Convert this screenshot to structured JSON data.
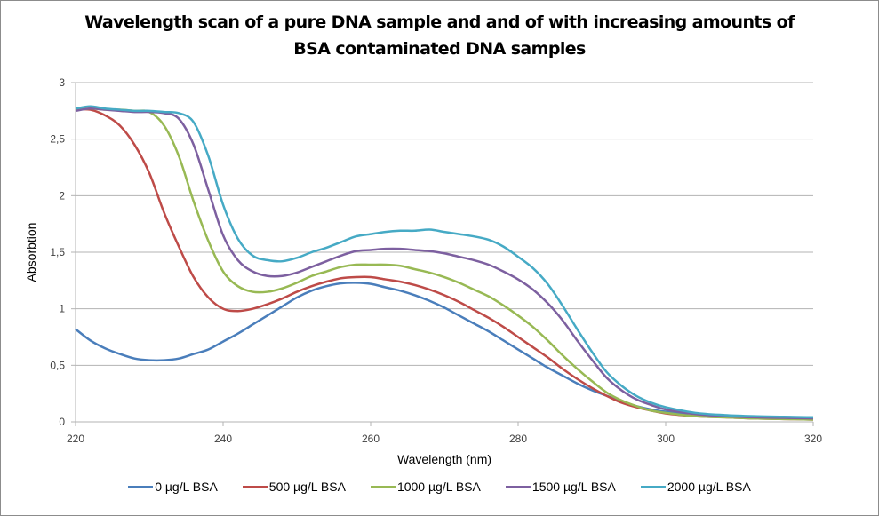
{
  "chart_data": {
    "type": "line",
    "title_lines": [
      "Wavelength scan of a pure DNA sample and and of with increasing amounts of",
      "BSA contaminated DNA samples"
    ],
    "xlabel": "Wavelength (nm)",
    "ylabel": "Absorbtion",
    "xlim": [
      220,
      320
    ],
    "ylim": [
      0,
      3
    ],
    "x_ticks": [
      220,
      240,
      260,
      280,
      300,
      320
    ],
    "x_tick_labels": [
      "220",
      "240",
      "260",
      "280",
      "300",
      "320"
    ],
    "y_ticks": [
      0,
      0.5,
      1,
      1.5,
      2,
      2.5,
      3
    ],
    "y_tick_labels": [
      "0",
      "0,5",
      "1",
      "1,5",
      "2",
      "2,5",
      "3"
    ],
    "grid": "horizontal",
    "legend_position": "bottom",
    "x": [
      220,
      222,
      224,
      226,
      228,
      230,
      232,
      234,
      236,
      238,
      240,
      242,
      244,
      246,
      248,
      250,
      252,
      254,
      256,
      258,
      260,
      262,
      264,
      266,
      268,
      270,
      272,
      274,
      276,
      278,
      280,
      282,
      284,
      286,
      288,
      290,
      292,
      294,
      296,
      298,
      300,
      304,
      308,
      312,
      316,
      320
    ],
    "series": [
      {
        "name": "0 µg/L BSA",
        "color": "#4a7ebb",
        "values": [
          0.82,
          0.72,
          0.65,
          0.6,
          0.56,
          0.545,
          0.545,
          0.56,
          0.6,
          0.64,
          0.71,
          0.78,
          0.86,
          0.94,
          1.02,
          1.1,
          1.16,
          1.2,
          1.225,
          1.23,
          1.22,
          1.19,
          1.16,
          1.12,
          1.07,
          1.01,
          0.94,
          0.87,
          0.8,
          0.72,
          0.64,
          0.56,
          0.48,
          0.41,
          0.34,
          0.28,
          0.23,
          0.18,
          0.14,
          0.11,
          0.09,
          0.07,
          0.055,
          0.045,
          0.04,
          0.04
        ]
      },
      {
        "name": "500 µg/L BSA",
        "color": "#be4b48",
        "values": [
          2.76,
          2.76,
          2.71,
          2.62,
          2.45,
          2.2,
          1.85,
          1.55,
          1.28,
          1.1,
          1.0,
          0.98,
          1.0,
          1.04,
          1.09,
          1.15,
          1.2,
          1.24,
          1.27,
          1.28,
          1.28,
          1.26,
          1.24,
          1.21,
          1.17,
          1.12,
          1.06,
          0.99,
          0.92,
          0.84,
          0.75,
          0.66,
          0.57,
          0.47,
          0.38,
          0.3,
          0.23,
          0.17,
          0.13,
          0.1,
          0.075,
          0.05,
          0.04,
          0.03,
          0.025,
          0.02
        ]
      },
      {
        "name": "1000 µg/L BSA",
        "color": "#98b954",
        "values": [
          2.76,
          2.77,
          2.76,
          2.76,
          2.75,
          2.74,
          2.62,
          2.35,
          1.95,
          1.6,
          1.33,
          1.2,
          1.15,
          1.15,
          1.18,
          1.23,
          1.29,
          1.33,
          1.37,
          1.39,
          1.39,
          1.39,
          1.38,
          1.35,
          1.32,
          1.28,
          1.23,
          1.17,
          1.11,
          1.03,
          0.94,
          0.84,
          0.72,
          0.59,
          0.47,
          0.36,
          0.26,
          0.19,
          0.14,
          0.1,
          0.08,
          0.05,
          0.04,
          0.03,
          0.025,
          0.02
        ]
      },
      {
        "name": "1500 µg/L BSA",
        "color": "#7d60a0",
        "values": [
          2.75,
          2.77,
          2.76,
          2.75,
          2.74,
          2.74,
          2.73,
          2.68,
          2.45,
          2.05,
          1.65,
          1.43,
          1.33,
          1.29,
          1.29,
          1.32,
          1.37,
          1.42,
          1.47,
          1.51,
          1.52,
          1.53,
          1.53,
          1.52,
          1.51,
          1.49,
          1.46,
          1.43,
          1.39,
          1.33,
          1.26,
          1.17,
          1.05,
          0.9,
          0.72,
          0.55,
          0.39,
          0.28,
          0.2,
          0.15,
          0.11,
          0.07,
          0.05,
          0.04,
          0.035,
          0.03
        ]
      },
      {
        "name": "2000 µg/L BSA",
        "color": "#46aac5",
        "values": [
          2.77,
          2.79,
          2.77,
          2.76,
          2.75,
          2.75,
          2.74,
          2.73,
          2.65,
          2.35,
          1.92,
          1.62,
          1.47,
          1.43,
          1.42,
          1.45,
          1.5,
          1.54,
          1.59,
          1.64,
          1.66,
          1.68,
          1.69,
          1.69,
          1.7,
          1.68,
          1.66,
          1.64,
          1.61,
          1.55,
          1.46,
          1.36,
          1.22,
          1.03,
          0.82,
          0.62,
          0.44,
          0.32,
          0.23,
          0.17,
          0.13,
          0.08,
          0.06,
          0.05,
          0.045,
          0.04
        ]
      }
    ]
  }
}
